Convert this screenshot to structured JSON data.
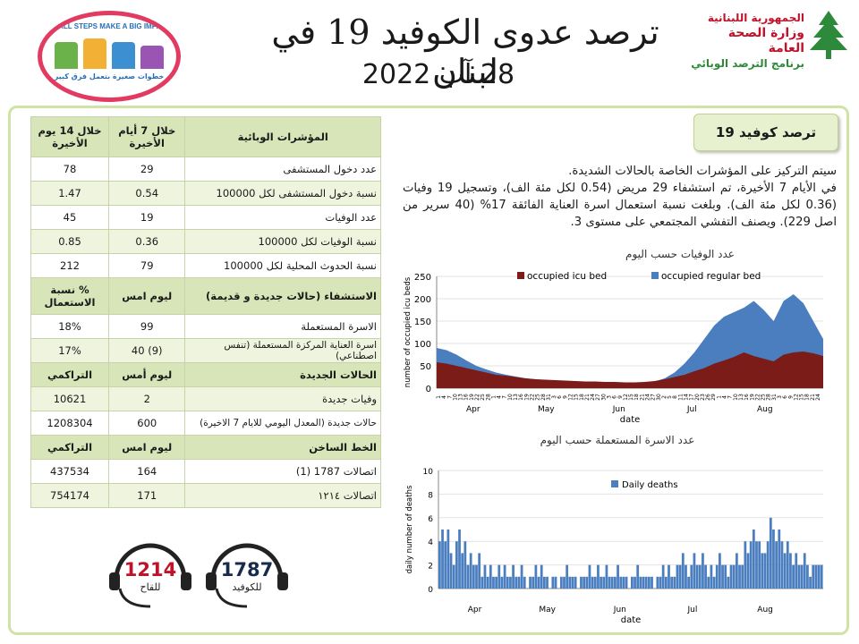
{
  "header": {
    "title": "ترصد عدوى الكوفيد 19 في لبنان",
    "date": "28 آب 2022",
    "campaign_top": "SMALL STEPS MAKE A BIG IMPACT",
    "campaign_bottom": "خطوات صغيرة بتعمل فرق كبير",
    "ministry_line1": "الجمهورية اللبنانية",
    "ministry_line2": "وزارة الصحة العامة",
    "ministry_line3": "برنامج الترصد الوبائي"
  },
  "colors": {
    "icu": "#7b1c19",
    "regular": "#4a7ebf",
    "deaths": "#4a7ebf",
    "frame": "#cfe3a4",
    "hotline_red": "#c0122a"
  },
  "table": {
    "col_header": [
      "المؤشرات الوبائية",
      "خلال 7 أيام الأخيرة",
      "خلال 14 يوم الأخيرة"
    ],
    "indicators": [
      [
        "عدد دخول المستشفى",
        "29",
        "78"
      ],
      [
        "نسبة دخول المستشفى لكل 100000",
        "0.54",
        "1.47"
      ],
      [
        "عدد الوفيات",
        "19",
        "45"
      ],
      [
        "نسبة الوفيات لكل 100000",
        "0.36",
        "0.85"
      ],
      [
        "نسبة الحدوث المحلية لكل 100000",
        "79",
        "212"
      ]
    ],
    "hosp_header": [
      "الاستشفاء (حالات جديدة و قديمة)",
      "ليوم امس",
      "% نسبة الاستعمال"
    ],
    "hosp": [
      [
        "الاسرة المستعملة",
        "99",
        "18%"
      ],
      [
        "اسرة العناية المركزة المستعملة (تنفس اصطناعي)",
        "40 (9)",
        "17%"
      ]
    ],
    "new_header": [
      "الحالات الجديدة",
      "ليوم أمس",
      "التراكمي"
    ],
    "new_cases": [
      [
        "وفيات جديدة",
        "2",
        "10621"
      ],
      [
        "حالات جديدة (المعدل اليومي للايام 7 الاخيرة)",
        "600",
        "1208304"
      ]
    ],
    "hotline_header": [
      "الخط الساخن",
      "ليوم امس",
      "التراكمي"
    ],
    "hotline": [
      [
        "اتصالات 1787 (1)",
        "164",
        "437534"
      ],
      [
        "اتصالات ١٢١٤",
        "171",
        "754174"
      ]
    ]
  },
  "badge": "ترصد كوفيد 19",
  "summary": {
    "p1": "سيتم التركيز على المؤشرات الخاصة بالحالات الشديدة.",
    "p2": "في الأيام 7 الأخيرة، تم استشفاء 29 مريض (0.54 لكل مئة الف)، وتسجيل 19 وفيات (0.36 لكل مئة الف). وبلغت نسبة استعمال اسرة العناية الفائقة 17% (40 سرير من اصل 229). ويصنف التفشي المجتمعي على مستوى 3."
  },
  "hotline_icons": [
    {
      "number": "1787",
      "label": "للكوفيد"
    },
    {
      "number": "1214",
      "label": "للقاح"
    }
  ],
  "chart_data": [
    {
      "type": "area",
      "title": "عدد الوفيات حسب اليوم",
      "xlabel": "date",
      "ylabel": "number of occupied icu beds",
      "ylim": [
        0,
        250
      ],
      "yticks": [
        0,
        50,
        100,
        150,
        200,
        250
      ],
      "months": [
        "Apr",
        "May",
        "Jun",
        "Jul",
        "Aug"
      ],
      "day_ticks": [
        "1",
        "4",
        "7",
        "10",
        "13",
        "16",
        "19",
        "22",
        "25",
        "28",
        "1",
        "4",
        "7",
        "10",
        "13",
        "16",
        "19",
        "22",
        "25",
        "28",
        "31",
        "3",
        "6",
        "9",
        "12",
        "15",
        "18",
        "21",
        "24",
        "27",
        "30",
        "3",
        "6",
        "9",
        "12",
        "15",
        "18",
        "21",
        "24",
        "27",
        "30",
        "2",
        "5",
        "8",
        "11",
        "14",
        "17",
        "20",
        "23",
        "26",
        "29",
        "1",
        "4",
        "7",
        "10",
        "13",
        "16",
        "19",
        "22",
        "25",
        "28",
        "31",
        "3",
        "6",
        "9",
        "12",
        "15",
        "18",
        "21",
        "24"
      ],
      "series": [
        {
          "name": "occupied icu bed",
          "color": "#7b1c19",
          "values": [
            58,
            55,
            50,
            45,
            40,
            35,
            30,
            28,
            25,
            22,
            20,
            19,
            18,
            17,
            16,
            15,
            15,
            14,
            14,
            13,
            13,
            14,
            16,
            20,
            25,
            30,
            38,
            45,
            55,
            62,
            70,
            80,
            72,
            66,
            60,
            75,
            80,
            82,
            78,
            72
          ]
        },
        {
          "name": "occupied regular bed",
          "color": "#4a7ebf",
          "values": [
            90,
            85,
            75,
            62,
            50,
            42,
            35,
            30,
            26,
            22,
            20,
            18,
            16,
            15,
            14,
            13,
            12,
            12,
            11,
            10,
            10,
            12,
            15,
            22,
            35,
            55,
            80,
            110,
            140,
            160,
            170,
            180,
            195,
            175,
            150,
            195,
            210,
            190,
            150,
            110
          ]
        }
      ]
    },
    {
      "type": "bar",
      "title": "عدد الاسرة المستعملة حسب اليوم",
      "xlabel": "date",
      "ylabel": "daily number of deaths",
      "ylim": [
        0,
        10
      ],
      "yticks": [
        0,
        2,
        4,
        6,
        8,
        10
      ],
      "months": [
        "Apr",
        "May",
        "Jun",
        "Jul",
        "Aug"
      ],
      "series": [
        {
          "name": "Daily deaths",
          "color": "#4a7ebf",
          "values": [
            4,
            5,
            4,
            5,
            3,
            2,
            4,
            5,
            3,
            4,
            2,
            3,
            2,
            2,
            3,
            1,
            2,
            1,
            2,
            1,
            1,
            2,
            1,
            2,
            1,
            1,
            2,
            1,
            1,
            2,
            1,
            0,
            1,
            1,
            2,
            1,
            2,
            1,
            1,
            0,
            1,
            1,
            0,
            1,
            1,
            2,
            1,
            1,
            1,
            0,
            1,
            1,
            1,
            2,
            1,
            1,
            2,
            1,
            1,
            2,
            1,
            1,
            1,
            2,
            1,
            1,
            1,
            0,
            1,
            1,
            2,
            1,
            1,
            1,
            1,
            1,
            0,
            1,
            1,
            2,
            1,
            2,
            1,
            1,
            2,
            2,
            3,
            2,
            1,
            2,
            3,
            2,
            2,
            3,
            2,
            1,
            2,
            1,
            2,
            3,
            2,
            2,
            1,
            2,
            2,
            3,
            2,
            2,
            4,
            3,
            4,
            5,
            4,
            4,
            3,
            3,
            4,
            6,
            5,
            4,
            5,
            4,
            3,
            4,
            3,
            2,
            3,
            2,
            2,
            3,
            2,
            1,
            2,
            2,
            2,
            2
          ]
        }
      ]
    }
  ]
}
